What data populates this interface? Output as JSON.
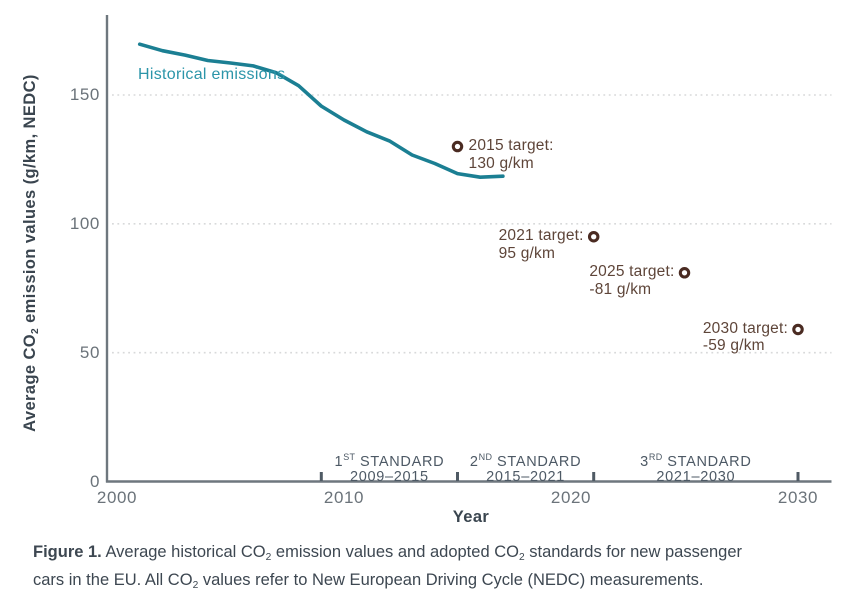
{
  "colors": {
    "line_teal": "#1b7f93",
    "label_teal": "#2b95a9",
    "target_brown_ring": "#4a2b22",
    "target_brown_text": "#5e4539",
    "axis_gray": "#6e777e",
    "tick_mark_gray": "#4f5a64",
    "gridline_gray": "#d8d9da",
    "axis_title_dark": "#3a454f",
    "standard_gray": "#4d5965"
  },
  "axis": {
    "y_title_pre": "Average CO",
    "y_title_sub": "2",
    "y_title_post": " emission values (g/km, NEDC)",
    "x_title": "Year"
  },
  "chart_data": {
    "type": "line",
    "title": "",
    "xlabel": "Year",
    "ylabel": "Average CO2 emission values (g/km, NEDC)",
    "xlim": [
      2000,
      2031.5
    ],
    "ylim": [
      0,
      181
    ],
    "x_ticks": [
      2000,
      2010,
      2020,
      2030
    ],
    "x_tick_labels": [
      "2000",
      "2010",
      "2020",
      "2030"
    ],
    "y_ticks": [
      0,
      50,
      100,
      150
    ],
    "y_tick_labels": [
      "0",
      "50",
      "100",
      "150"
    ],
    "gridlines_y": [
      50,
      100,
      150
    ],
    "grid_style": "dotted horizontal",
    "boundary_tick_years": [
      2009,
      2015,
      2021,
      2030
    ],
    "series": [
      {
        "name": "Historical emissions",
        "x": [
          2001,
          2002,
          2003,
          2004,
          2005,
          2006,
          2007,
          2008,
          2009,
          2010,
          2011,
          2012,
          2013,
          2014,
          2015,
          2016,
          2017
        ],
        "values": [
          169.7,
          167.2,
          165.5,
          163.4,
          162.4,
          161.3,
          158.7,
          153.6,
          145.7,
          140.3,
          135.7,
          132.2,
          126.7,
          123.4,
          119.5,
          118.1,
          118.5
        ]
      }
    ],
    "targets": [
      {
        "year": 2015,
        "value": 130,
        "line1": "2015 target:",
        "line2": "130 g/km",
        "label_side": "right-of-marker"
      },
      {
        "year": 2021,
        "value": 95,
        "line1": "2021 target:",
        "line2": "95 g/km",
        "label_side": "left-of-marker"
      },
      {
        "year": 2025,
        "value": 81,
        "line1": "2025 target:",
        "line2": "-81 g/km",
        "label_side": "left-of-marker"
      },
      {
        "year": 2030,
        "value": 59,
        "line1": "2030 target:",
        "line2": "-59 g/km",
        "label_side": "left-of-marker"
      }
    ],
    "standards_periods": [
      {
        "num": "1",
        "sup": "ST",
        "rest": " STANDARD",
        "range": "2009–2015",
        "start": 2009,
        "end": 2015
      },
      {
        "num": "2",
        "sup": "ND",
        "rest": " STANDARD",
        "range": "2015–2021",
        "start": 2015,
        "end": 2021
      },
      {
        "num": "3",
        "sup": "RD",
        "rest": " STANDARD",
        "range": "2021–2030",
        "start": 2021,
        "end": 2030
      }
    ]
  },
  "caption": {
    "figure_label": "Figure 1.",
    "l1r1": " Average historical CO",
    "l1s1": "2",
    "l1r2": " emission values and adopted CO",
    "l1s2": "2",
    "l1r3": " standards for new passenger",
    "l2r1": "cars in the EU. All CO",
    "l2s1": "2",
    "l2r2": " values refer to New European Driving Cycle (NEDC) measurements."
  }
}
